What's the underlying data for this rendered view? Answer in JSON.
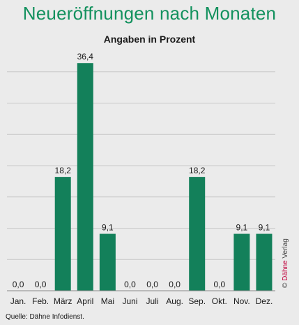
{
  "header": {
    "title": "Neueröffnungen nach Monaten",
    "subtitle": "Angaben in Prozent"
  },
  "footer": {
    "source": "Quelle: Dähne Infodienst.",
    "credit_symbol": "©",
    "credit_brand": "Dähne",
    "credit_suffix": "Verlag"
  },
  "colors": {
    "bar": "#13805a",
    "title": "#13915e",
    "background": "#ebebeb",
    "gridline": "#c8c8c8"
  },
  "chart_data": {
    "type": "bar",
    "title": "Neueröffnungen nach Monaten",
    "subtitle": "Angaben in Prozent",
    "categories": [
      "Jan.",
      "Feb.",
      "März",
      "April",
      "Mai",
      "Juni",
      "Juli",
      "Aug.",
      "Sep.",
      "Okt.",
      "Nov.",
      "Dez."
    ],
    "values": [
      0.0,
      0.0,
      18.2,
      36.4,
      9.1,
      0.0,
      0.0,
      0.0,
      18.2,
      0.0,
      9.1,
      9.1
    ],
    "value_labels": [
      "0,0",
      "0,0",
      "18,2",
      "36,4",
      "9,1",
      "0,0",
      "0,0",
      "0,0",
      "18,2",
      "0,0",
      "9,1",
      "9,1"
    ],
    "ylim": [
      0,
      40
    ],
    "grid": true,
    "legend": "none"
  }
}
